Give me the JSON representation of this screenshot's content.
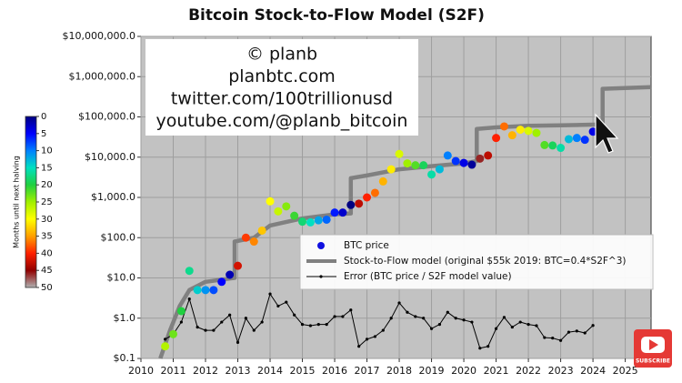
{
  "chart_data": {
    "type": "scatter",
    "title": "Bitcoin Stock-to-Flow Model (S2F)",
    "annotations": [
      "© planb",
      "planbtc.com",
      "twitter.com/100trillionusd",
      "youtube.com/@planb_bitcoin"
    ],
    "badge": "SUBSCRIBE",
    "log_y": true,
    "grid": true,
    "legend": "center right",
    "xlim": [
      2010,
      2025.8
    ],
    "xticks": [
      2010,
      2011,
      2012,
      2013,
      2014,
      2015,
      2016,
      2017,
      2018,
      2019,
      2020,
      2021,
      2022,
      2023,
      2024,
      2025
    ],
    "ylim": [
      0.1,
      10000000
    ],
    "yticks": [
      {
        "value": 0.1,
        "label": "$0.1"
      },
      {
        "value": 1,
        "label": "$1.0"
      },
      {
        "value": 10,
        "label": "$10.0"
      },
      {
        "value": 100,
        "label": "$100.0"
      },
      {
        "value": 1000,
        "label": "$1,000.0"
      },
      {
        "value": 10000,
        "label": "$10,000.0"
      },
      {
        "value": 100000,
        "label": "$100,000.0"
      },
      {
        "value": 1000000,
        "label": "$1,000,000.0"
      },
      {
        "value": 10000000,
        "label": "$10,000,000.0"
      }
    ],
    "colorbar": {
      "label": "Months until next halving",
      "lim": [
        0,
        50
      ],
      "ticks": [
        0,
        5,
        10,
        15,
        20,
        25,
        30,
        35,
        40,
        45,
        50
      ],
      "colors": [
        "#000080",
        "#0000ff",
        "#0080ff",
        "#00e0c0",
        "#20d040",
        "#a0f000",
        "#ffff00",
        "#ffa000",
        "#ff2000",
        "#900000",
        "#b0b0b0"
      ]
    },
    "series": [
      {
        "name": "BTC price",
        "type": "scatter",
        "color": "#1010e0",
        "x": [
          2010.75,
          2011.0,
          2011.25,
          2011.5,
          2011.75,
          2012.0,
          2012.25,
          2012.5,
          2012.75,
          2013.0,
          2013.25,
          2013.5,
          2013.75,
          2014.0,
          2014.25,
          2014.5,
          2014.75,
          2015.0,
          2015.25,
          2015.5,
          2015.75,
          2016.0,
          2016.25,
          2016.5,
          2016.75,
          2017.0,
          2017.25,
          2017.5,
          2017.75,
          2018.0,
          2018.25,
          2018.5,
          2018.75,
          2019.0,
          2019.25,
          2019.5,
          2019.75,
          2020.0,
          2020.25,
          2020.5,
          2020.75,
          2021.0,
          2021.25,
          2021.5,
          2021.75,
          2022.0,
          2022.25,
          2022.5,
          2022.75,
          2023.0,
          2023.25,
          2023.5,
          2023.75,
          2024.0
        ],
        "values": [
          0.2,
          0.4,
          1.5,
          15,
          5,
          5,
          5,
          8,
          12,
          20,
          100,
          80,
          150,
          800,
          450,
          600,
          350,
          250,
          240,
          270,
          280,
          420,
          420,
          650,
          700,
          1000,
          1300,
          2500,
          5000,
          12000,
          7000,
          6300,
          6300,
          3700,
          5000,
          11000,
          8000,
          7200,
          6500,
          9200,
          11000,
          30000,
          58000,
          35000,
          48000,
          45000,
          40000,
          20000,
          19500,
          17000,
          28000,
          30000,
          27000,
          43000
        ],
        "color_values": [
          26,
          23,
          20,
          17,
          14,
          11,
          8,
          5,
          2,
          42,
          39,
          36,
          33,
          30,
          27,
          24,
          21,
          18,
          15,
          12,
          9,
          6,
          3,
          0,
          43,
          40,
          37,
          34,
          31,
          28,
          25,
          22,
          19,
          16,
          13,
          10,
          7,
          4,
          1,
          46,
          43,
          40,
          37,
          34,
          31,
          28,
          25,
          22,
          19,
          16,
          13,
          10,
          7,
          4
        ]
      },
      {
        "name": "Stock-to-Flow model (original $55k 2019:  BTC=0.4*S2F^3)",
        "type": "line",
        "color": "#808080",
        "x": [
          2010.6,
          2010.9,
          2011.2,
          2011.5,
          2012.0,
          2012.9,
          2012.9,
          2013.5,
          2014.0,
          2015.0,
          2016.0,
          2016.5,
          2016.5,
          2017.0,
          2018.0,
          2019.0,
          2020.0,
          2020.4,
          2020.4,
          2021.0,
          2022.0,
          2023.0,
          2024.3,
          2024.3,
          2025.8
        ],
        "values": [
          0.1,
          0.5,
          2,
          5,
          8,
          10,
          80,
          100,
          200,
          300,
          380,
          400,
          3000,
          3500,
          5000,
          6000,
          7000,
          8000,
          50000,
          55000,
          60000,
          62000,
          65000,
          500000,
          550000
        ]
      },
      {
        "name": "Error (BTC price / S2F model value)",
        "type": "line",
        "color": "#000000",
        "x": [
          2010.75,
          2011.0,
          2011.25,
          2011.5,
          2011.75,
          2012.0,
          2012.25,
          2012.5,
          2012.75,
          2013.0,
          2013.25,
          2013.5,
          2013.75,
          2014.0,
          2014.25,
          2014.5,
          2014.75,
          2015.0,
          2015.25,
          2015.5,
          2015.75,
          2016.0,
          2016.25,
          2016.5,
          2016.75,
          2017.0,
          2017.25,
          2017.5,
          2017.75,
          2018.0,
          2018.25,
          2018.5,
          2018.75,
          2019.0,
          2019.25,
          2019.5,
          2019.75,
          2020.0,
          2020.25,
          2020.5,
          2020.75,
          2021.0,
          2021.25,
          2021.5,
          2021.75,
          2022.0,
          2022.25,
          2022.5,
          2022.75,
          2023.0,
          2023.25,
          2023.5,
          2023.75,
          2024.0
        ],
        "values": [
          0.3,
          0.4,
          0.8,
          3,
          0.6,
          0.5,
          0.5,
          0.8,
          1.2,
          0.25,
          1,
          0.5,
          0.8,
          4,
          2,
          2.5,
          1.2,
          0.7,
          0.65,
          0.7,
          0.7,
          1.1,
          1.1,
          1.6,
          0.2,
          0.3,
          0.35,
          0.5,
          1,
          2.4,
          1.4,
          1.1,
          1,
          0.55,
          0.7,
          1.4,
          1,
          0.9,
          0.8,
          0.18,
          0.2,
          0.55,
          1.05,
          0.6,
          0.8,
          0.7,
          0.65,
          0.33,
          0.32,
          0.28,
          0.45,
          0.48,
          0.43,
          0.66
        ]
      }
    ]
  }
}
